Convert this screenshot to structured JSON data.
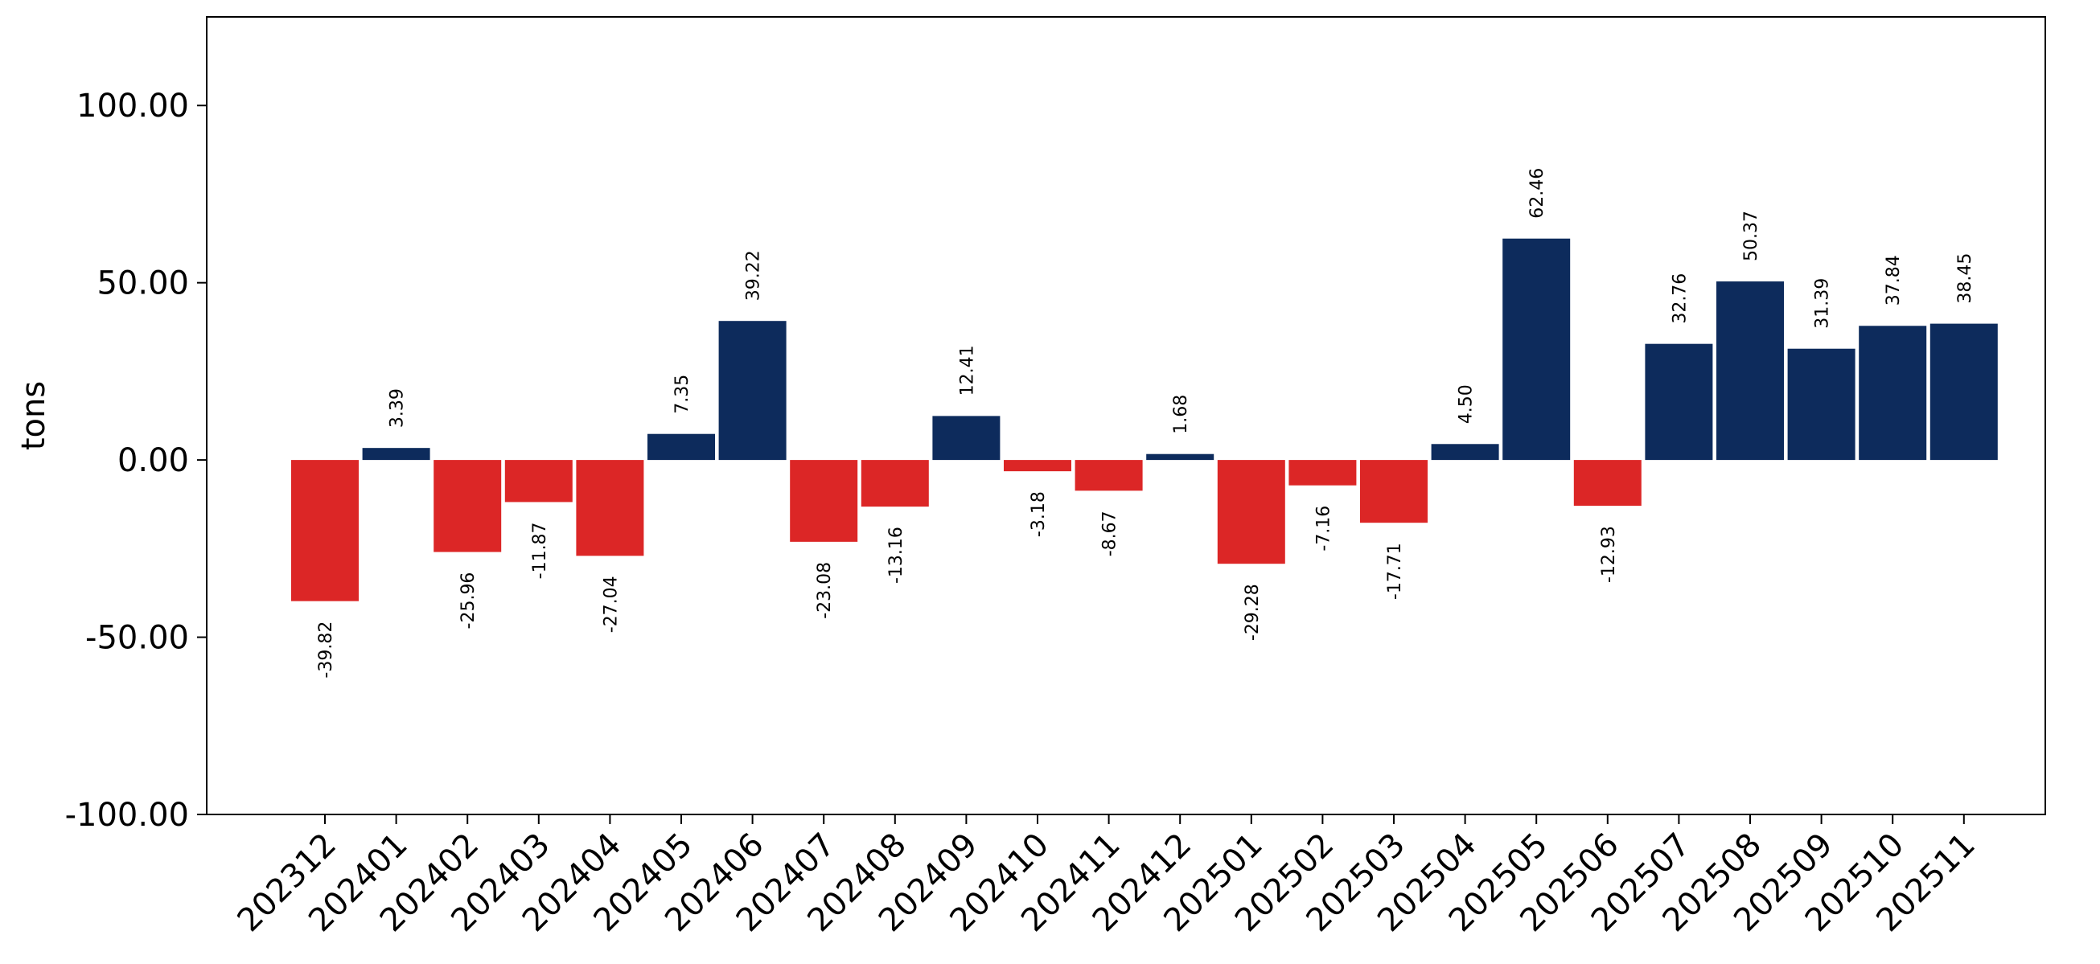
{
  "chart_data": {
    "type": "bar",
    "title": "",
    "xlabel": "",
    "ylabel": "tons",
    "ylim": [
      -100,
      125
    ],
    "yticks": [
      -100,
      -50,
      0,
      50,
      100
    ],
    "ytick_labels": [
      "-100.00",
      "-50.00",
      "0.00",
      "50.00",
      "100.00"
    ],
    "grid": false,
    "legend": "none",
    "categories": [
      "202312",
      "202401",
      "202402",
      "202403",
      "202404",
      "202405",
      "202406",
      "202407",
      "202408",
      "202409",
      "202410",
      "202411",
      "202412",
      "202501",
      "202502",
      "202503",
      "202504",
      "202505",
      "202506",
      "202507",
      "202508",
      "202509",
      "202510",
      "202511"
    ],
    "values": [
      -39.82,
      3.39,
      -25.96,
      -11.87,
      -27.04,
      7.35,
      39.22,
      -23.08,
      -13.16,
      12.41,
      -3.18,
      -8.67,
      1.68,
      -29.28,
      -7.16,
      -17.71,
      4.5,
      62.46,
      -12.93,
      32.76,
      50.37,
      31.39,
      37.84,
      38.45
    ],
    "data_labels": [
      "-39.82",
      "3.39",
      "-25.96",
      "-11.87",
      "-27.04",
      "7.35",
      "39.22",
      "-23.08",
      "-13.16",
      "12.41",
      "-3.18",
      "-8.67",
      "1.68",
      "-29.28",
      "-7.16",
      "-17.71",
      "4.50",
      "62.46",
      "-12.93",
      "32.76",
      "50.37",
      "31.39",
      "37.84",
      "38.45"
    ],
    "colors": {
      "positive": "#0d2b5c",
      "negative": "#dc2626"
    }
  }
}
